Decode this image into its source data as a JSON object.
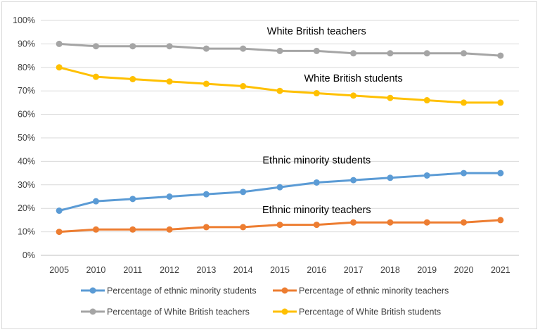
{
  "chart_data": {
    "type": "line",
    "categories": [
      "2005",
      "2010",
      "2011",
      "2012",
      "2013",
      "2014",
      "2015",
      "2016",
      "2017",
      "2018",
      "2019",
      "2020",
      "2021"
    ],
    "ylim": [
      0,
      100
    ],
    "yticks": [
      "0%",
      "10%",
      "20%",
      "30%",
      "40%",
      "50%",
      "60%",
      "70%",
      "80%",
      "90%",
      "100%"
    ],
    "grid": "horizontal",
    "legend_position": "bottom",
    "series": [
      {
        "name": "Percentage of ethnic minority students",
        "color": "#5b9bd5",
        "values": [
          19,
          23,
          24,
          25,
          26,
          27,
          29,
          31,
          32,
          33,
          34,
          35,
          35
        ]
      },
      {
        "name": "Percentage of ethnic minority teachers",
        "color": "#ed7d31",
        "values": [
          10,
          11,
          11,
          11,
          12,
          12,
          13,
          13,
          14,
          14,
          14,
          14,
          15
        ]
      },
      {
        "name": "Percentage of White British  teachers",
        "color": "#a5a5a5",
        "values": [
          90,
          89,
          89,
          89,
          88,
          88,
          87,
          87,
          86,
          86,
          86,
          86,
          85
        ]
      },
      {
        "name": "Percentage of White British students",
        "color": "#ffc000",
        "values": [
          80,
          76,
          75,
          74,
          73,
          72,
          70,
          69,
          68,
          67,
          66,
          65,
          65
        ]
      }
    ],
    "annotations": [
      {
        "text": "White British teachers",
        "x": "2016",
        "y": 94
      },
      {
        "text": "White British students",
        "x": "2017",
        "y": 74
      },
      {
        "text": "Ethnic minority students",
        "x": "2016",
        "y": 39
      },
      {
        "text": "Ethnic minority teachers",
        "x": "2016",
        "y": 18
      }
    ]
  }
}
